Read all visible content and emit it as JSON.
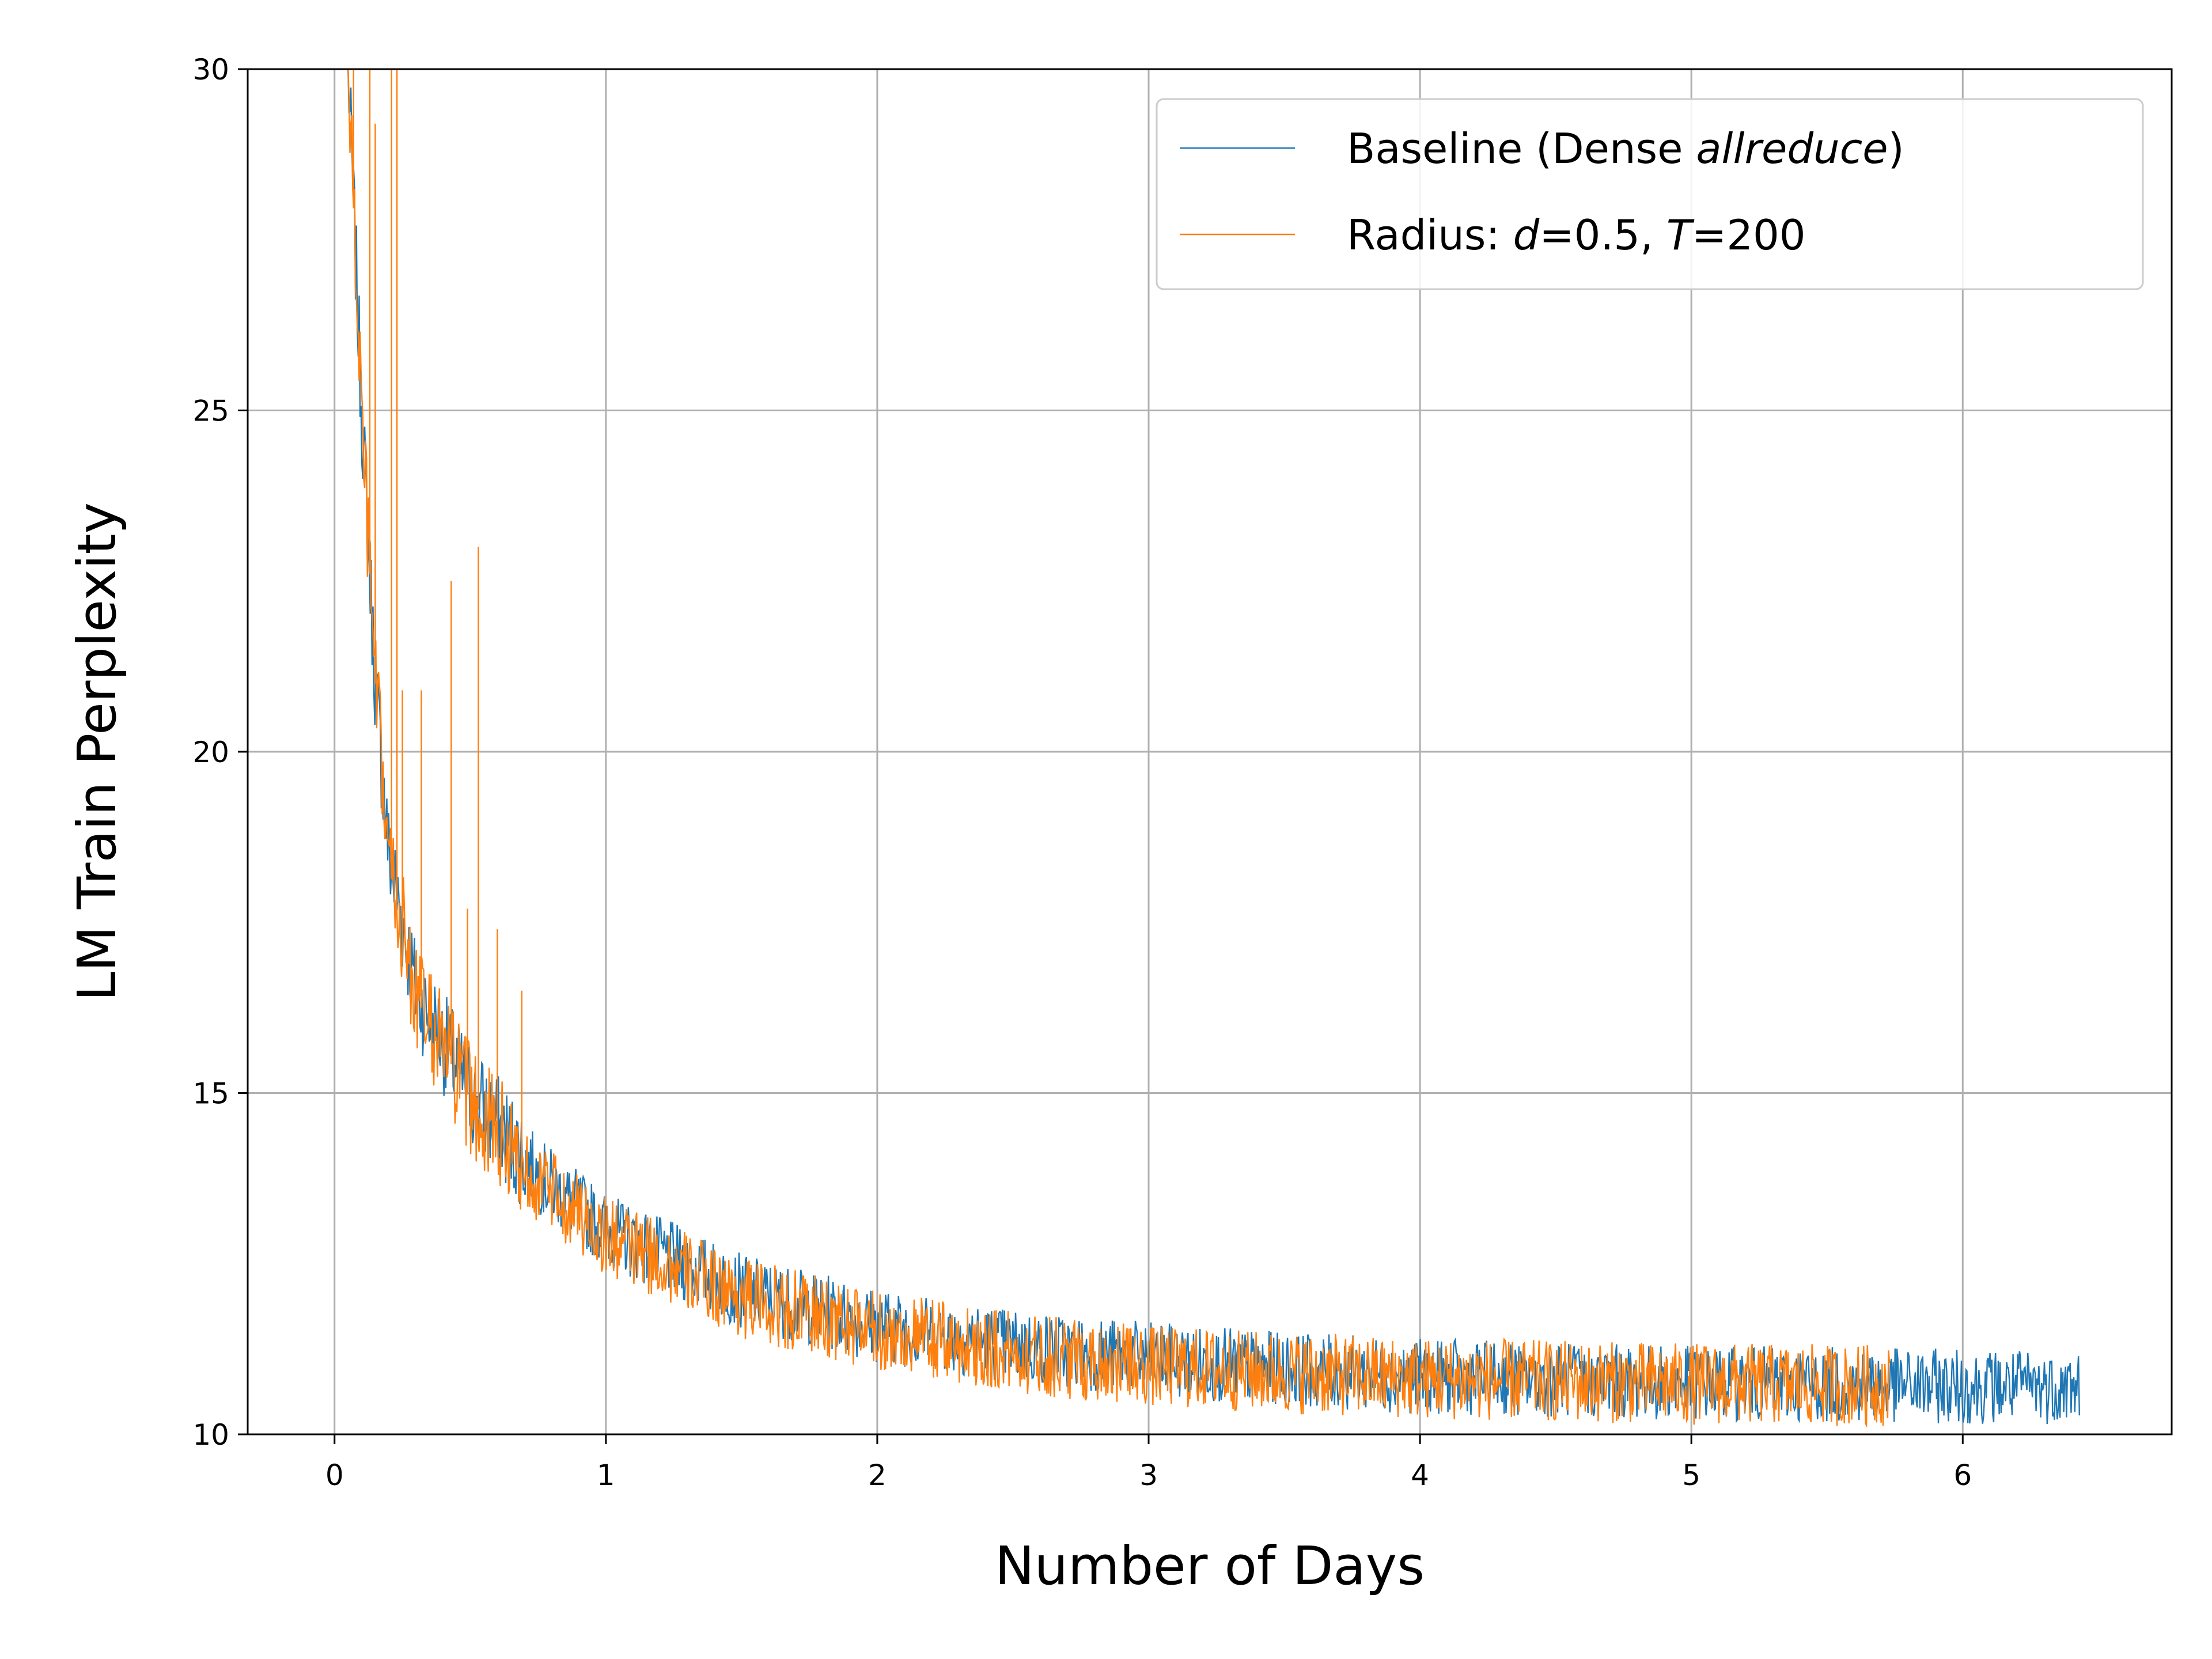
{
  "chart_data": {
    "type": "line",
    "xlabel": "Number of Days",
    "ylabel": "LM Train Perplexity",
    "xlim": [
      -0.32,
      6.77
    ],
    "ylim": [
      10,
      30
    ],
    "xticks": [
      0,
      1,
      2,
      3,
      4,
      5,
      6
    ],
    "yticks": [
      10,
      15,
      20,
      25,
      30
    ],
    "grid": true,
    "legend_position": "top-right",
    "series": [
      {
        "name_parts": [
          {
            "text": "Baseline (Dense ",
            "italic": false
          },
          {
            "text": "allreduce",
            "italic": true
          },
          {
            "text": ")",
            "italic": false
          }
        ],
        "color": "#1f77b4",
        "x": [
          0.05,
          0.1,
          0.15,
          0.2,
          0.3,
          0.5,
          0.75,
          1.0,
          1.5,
          2.0,
          2.5,
          3.0,
          3.5,
          4.0,
          4.5,
          5.0,
          5.5,
          6.0,
          6.43
        ],
        "y": [
          30,
          25,
          21,
          18.5,
          16.5,
          15.0,
          13.8,
          13.0,
          12.1,
          11.6,
          11.3,
          11.1,
          10.95,
          10.85,
          10.8,
          10.75,
          10.73,
          10.7,
          10.7
        ],
        "noise_band": 0.55
      },
      {
        "name_parts": [
          {
            "text": "Radius: ",
            "italic": false
          },
          {
            "text": "d",
            "italic": true
          },
          {
            "text": "=0.5, ",
            "italic": false
          },
          {
            "text": "T",
            "italic": true
          },
          {
            "text": "=200",
            "italic": false
          }
        ],
        "color": "#ff7f0e",
        "x": [
          0.05,
          0.1,
          0.15,
          0.2,
          0.3,
          0.5,
          0.75,
          1.0,
          1.5,
          2.0,
          2.5,
          3.0,
          3.5,
          4.0,
          4.5,
          5.0,
          5.5,
          5.73
        ],
        "y": [
          30,
          25,
          21,
          18.4,
          16.4,
          14.9,
          13.7,
          12.9,
          12.0,
          11.5,
          11.2,
          11.0,
          10.9,
          10.82,
          10.78,
          10.74,
          10.72,
          10.72
        ],
        "noise_band": 0.6,
        "spikes": [
          {
            "x": 0.07,
            "y": 30
          },
          {
            "x": 0.13,
            "y": 30
          },
          {
            "x": 0.15,
            "y": 29.2
          },
          {
            "x": 0.21,
            "y": 30
          },
          {
            "x": 0.23,
            "y": 30
          },
          {
            "x": 0.25,
            "y": 20.9
          },
          {
            "x": 0.32,
            "y": 20.9
          },
          {
            "x": 0.43,
            "y": 22.5
          },
          {
            "x": 0.49,
            "y": 17.7
          },
          {
            "x": 0.53,
            "y": 23.0
          },
          {
            "x": 0.6,
            "y": 17.4
          },
          {
            "x": 0.69,
            "y": 16.5
          }
        ]
      }
    ]
  }
}
